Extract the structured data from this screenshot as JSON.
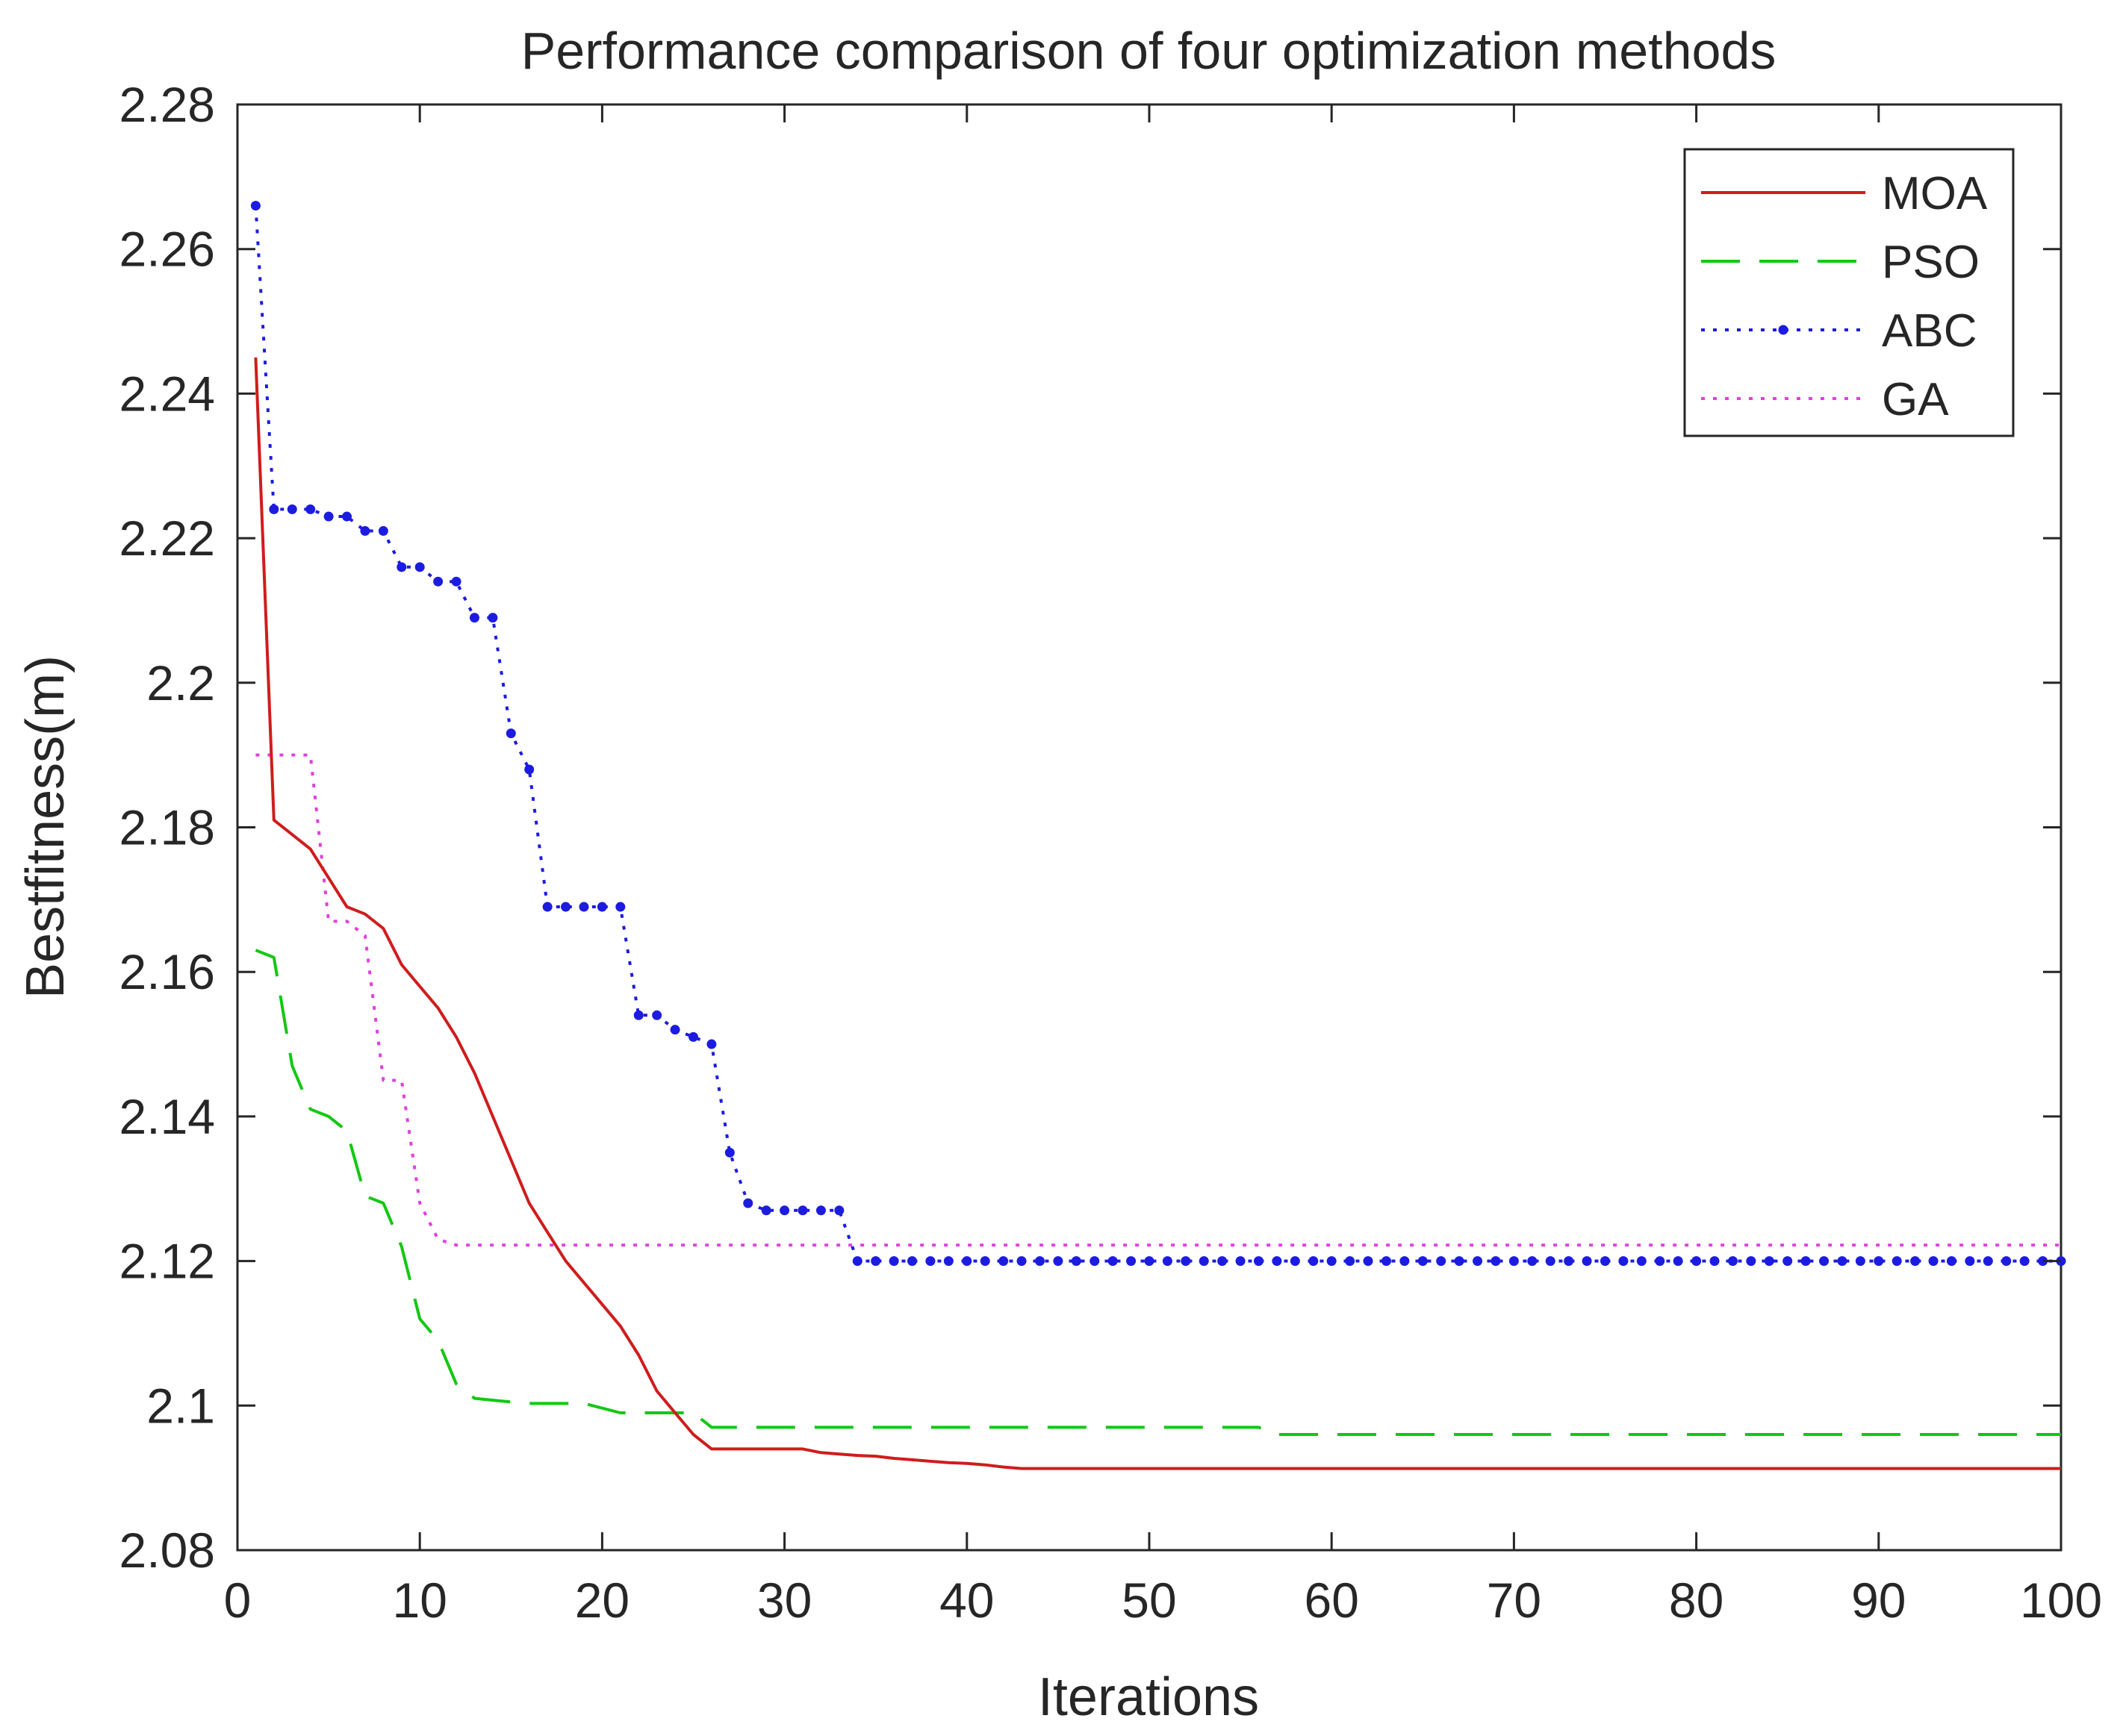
{
  "chart_data": {
    "type": "line",
    "title": "Performance comparison of four optimization methods",
    "xlabel": "Iterations",
    "ylabel": "Bestfitness(m)",
    "xlim": [
      0,
      100
    ],
    "ylim": [
      2.08,
      2.28
    ],
    "xticks": [
      0,
      10,
      20,
      30,
      40,
      50,
      60,
      70,
      80,
      90,
      100
    ],
    "xtick_labels": [
      "0",
      "10",
      "20",
      "30",
      "40",
      "50",
      "60",
      "70",
      "80",
      "90",
      "100"
    ],
    "yticks": [
      2.08,
      2.1,
      2.12,
      2.14,
      2.16,
      2.18,
      2.2,
      2.22,
      2.24,
      2.26,
      2.28
    ],
    "ytick_labels": [
      "2.08",
      "2.1",
      "2.12",
      "2.14",
      "2.16",
      "2.18",
      "2.2",
      "2.22",
      "2.24",
      "2.26",
      "2.28"
    ],
    "grid": false,
    "legend_position": "top-right",
    "series": [
      {
        "name": "MOA",
        "color": "#d01c1c",
        "line_style": "solid",
        "marker": "none",
        "points": [
          [
            1,
            2.245
          ],
          [
            2,
            2.181
          ],
          [
            3,
            2.179
          ],
          [
            4,
            2.177
          ],
          [
            5,
            2.173
          ],
          [
            6,
            2.169
          ],
          [
            7,
            2.168
          ],
          [
            8,
            2.166
          ],
          [
            9,
            2.161
          ],
          [
            10,
            2.158
          ],
          [
            11,
            2.155
          ],
          [
            12,
            2.151
          ],
          [
            13,
            2.146
          ],
          [
            14,
            2.14
          ],
          [
            15,
            2.134
          ],
          [
            16,
            2.128
          ],
          [
            17,
            2.124
          ],
          [
            18,
            2.12
          ],
          [
            19,
            2.117
          ],
          [
            20,
            2.114
          ],
          [
            21,
            2.111
          ],
          [
            22,
            2.107
          ],
          [
            23,
            2.102
          ],
          [
            24,
            2.099
          ],
          [
            25,
            2.096
          ],
          [
            26,
            2.094
          ],
          [
            27,
            2.094
          ],
          [
            28,
            2.094
          ],
          [
            29,
            2.094
          ],
          [
            30,
            2.094
          ],
          [
            31,
            2.094
          ],
          [
            32,
            2.0935
          ],
          [
            33,
            2.0933
          ],
          [
            34,
            2.0931
          ],
          [
            35,
            2.093
          ],
          [
            36,
            2.0927
          ],
          [
            37,
            2.0925
          ],
          [
            38,
            2.0923
          ],
          [
            39,
            2.0921
          ],
          [
            40,
            2.092
          ],
          [
            41,
            2.0918
          ],
          [
            42,
            2.0915
          ],
          [
            43,
            2.0913
          ],
          [
            100,
            2.0913
          ]
        ]
      },
      {
        "name": "PSO",
        "color": "#12c812",
        "line_style": "dashed",
        "marker": "none",
        "points": [
          [
            1,
            2.163
          ],
          [
            2,
            2.162
          ],
          [
            3,
            2.147
          ],
          [
            4,
            2.141
          ],
          [
            5,
            2.14
          ],
          [
            6,
            2.138
          ],
          [
            7,
            2.129
          ],
          [
            8,
            2.128
          ],
          [
            9,
            2.122
          ],
          [
            10,
            2.112
          ],
          [
            11,
            2.109
          ],
          [
            12,
            2.103
          ],
          [
            13,
            2.101
          ],
          [
            15,
            2.1005
          ],
          [
            16,
            2.1003
          ],
          [
            19,
            2.1003
          ],
          [
            21,
            2.099
          ],
          [
            25,
            2.099
          ],
          [
            26,
            2.097
          ],
          [
            56,
            2.097
          ],
          [
            57,
            2.096
          ],
          [
            100,
            2.096
          ]
        ]
      },
      {
        "name": "ABC",
        "color": "#1c1ce0",
        "line_style": "dotted",
        "marker": "*",
        "points": [
          [
            1,
            2.266
          ],
          [
            2,
            2.224
          ],
          [
            3,
            2.224
          ],
          [
            4,
            2.224
          ],
          [
            5,
            2.223
          ],
          [
            6,
            2.223
          ],
          [
            7,
            2.221
          ],
          [
            8,
            2.221
          ],
          [
            9,
            2.216
          ],
          [
            10,
            2.216
          ],
          [
            11,
            2.214
          ],
          [
            12,
            2.214
          ],
          [
            13,
            2.209
          ],
          [
            14,
            2.209
          ],
          [
            15,
            2.193
          ],
          [
            16,
            2.188
          ],
          [
            17,
            2.169
          ],
          [
            18,
            2.169
          ],
          [
            19,
            2.169
          ],
          [
            20,
            2.169
          ],
          [
            21,
            2.169
          ],
          [
            22,
            2.154
          ],
          [
            23,
            2.154
          ],
          [
            24,
            2.152
          ],
          [
            25,
            2.151
          ],
          [
            26,
            2.15
          ],
          [
            27,
            2.135
          ],
          [
            28,
            2.128
          ],
          [
            29,
            2.127
          ],
          [
            30,
            2.127
          ],
          [
            31,
            2.127
          ],
          [
            32,
            2.127
          ],
          [
            33,
            2.127
          ],
          [
            34,
            2.12
          ],
          [
            35,
            2.12
          ],
          [
            36,
            2.12
          ],
          [
            37,
            2.12
          ],
          [
            38,
            2.12
          ],
          [
            39,
            2.12
          ],
          [
            40,
            2.12
          ],
          [
            41,
            2.12
          ],
          [
            42,
            2.12
          ],
          [
            43,
            2.12
          ],
          [
            44,
            2.12
          ],
          [
            45,
            2.12
          ],
          [
            46,
            2.12
          ],
          [
            47,
            2.12
          ],
          [
            48,
            2.12
          ],
          [
            49,
            2.12
          ],
          [
            50,
            2.12
          ],
          [
            51,
            2.12
          ],
          [
            52,
            2.12
          ],
          [
            53,
            2.12
          ],
          [
            54,
            2.12
          ],
          [
            55,
            2.12
          ],
          [
            56,
            2.12
          ],
          [
            57,
            2.12
          ],
          [
            58,
            2.12
          ],
          [
            59,
            2.12
          ],
          [
            60,
            2.12
          ],
          [
            61,
            2.12
          ],
          [
            62,
            2.12
          ],
          [
            63,
            2.12
          ],
          [
            64,
            2.12
          ],
          [
            65,
            2.12
          ],
          [
            66,
            2.12
          ],
          [
            67,
            2.12
          ],
          [
            68,
            2.12
          ],
          [
            69,
            2.12
          ],
          [
            70,
            2.12
          ],
          [
            71,
            2.12
          ],
          [
            72,
            2.12
          ],
          [
            73,
            2.12
          ],
          [
            74,
            2.12
          ],
          [
            75,
            2.12
          ],
          [
            76,
            2.12
          ],
          [
            77,
            2.12
          ],
          [
            78,
            2.12
          ],
          [
            79,
            2.12
          ],
          [
            80,
            2.12
          ],
          [
            81,
            2.12
          ],
          [
            82,
            2.12
          ],
          [
            83,
            2.12
          ],
          [
            84,
            2.12
          ],
          [
            85,
            2.12
          ],
          [
            86,
            2.12
          ],
          [
            87,
            2.12
          ],
          [
            88,
            2.12
          ],
          [
            89,
            2.12
          ],
          [
            90,
            2.12
          ],
          [
            91,
            2.12
          ],
          [
            92,
            2.12
          ],
          [
            93,
            2.12
          ],
          [
            94,
            2.12
          ],
          [
            95,
            2.12
          ],
          [
            96,
            2.12
          ],
          [
            97,
            2.12
          ],
          [
            98,
            2.12
          ],
          [
            99,
            2.12
          ],
          [
            100,
            2.12
          ]
        ]
      },
      {
        "name": "GA",
        "color": "#e040e0",
        "line_style": "dotted",
        "marker": "none",
        "points": [
          [
            1,
            2.19
          ],
          [
            4,
            2.19
          ],
          [
            5,
            2.167
          ],
          [
            6,
            2.167
          ],
          [
            7,
            2.165
          ],
          [
            8,
            2.145
          ],
          [
            9,
            2.145
          ],
          [
            10,
            2.128
          ],
          [
            11,
            2.123
          ],
          [
            12,
            2.1222
          ],
          [
            100,
            2.1222
          ]
        ]
      }
    ]
  }
}
